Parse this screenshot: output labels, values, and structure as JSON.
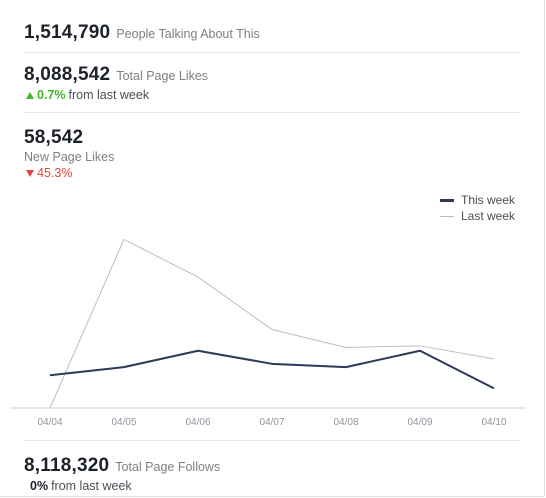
{
  "talking": {
    "value": "1,514,790",
    "label": "People Talking About This"
  },
  "page_likes": {
    "value": "8,088,542",
    "label": "Total Page Likes",
    "change": "0.7%",
    "change_suffix": "from last week"
  },
  "new_likes": {
    "value": "58,542",
    "label": "New Page Likes",
    "change": "45.3%"
  },
  "page_follows": {
    "value": "8,118,320",
    "label": "Total Page Follows",
    "change": "0%",
    "change_suffix": "from last week"
  },
  "colors": {
    "this_week": "#2b3a55",
    "last_week": "#bdbdbd",
    "up": "#42b72a",
    "down": "#e0473c"
  },
  "chart_data": {
    "type": "line",
    "categories": [
      "04/04",
      "04/05",
      "04/06",
      "04/07",
      "04/08",
      "04/09",
      "04/10"
    ],
    "series": [
      {
        "name": "This week",
        "values": [
          20,
          25,
          35,
          27,
          25,
          35,
          12
        ]
      },
      {
        "name": "Last week",
        "values": [
          0,
          103,
          80,
          48,
          37,
          38,
          30
        ]
      }
    ],
    "ylim": [
      0,
      110
    ],
    "legend_position": "top-right",
    "grid": false
  }
}
